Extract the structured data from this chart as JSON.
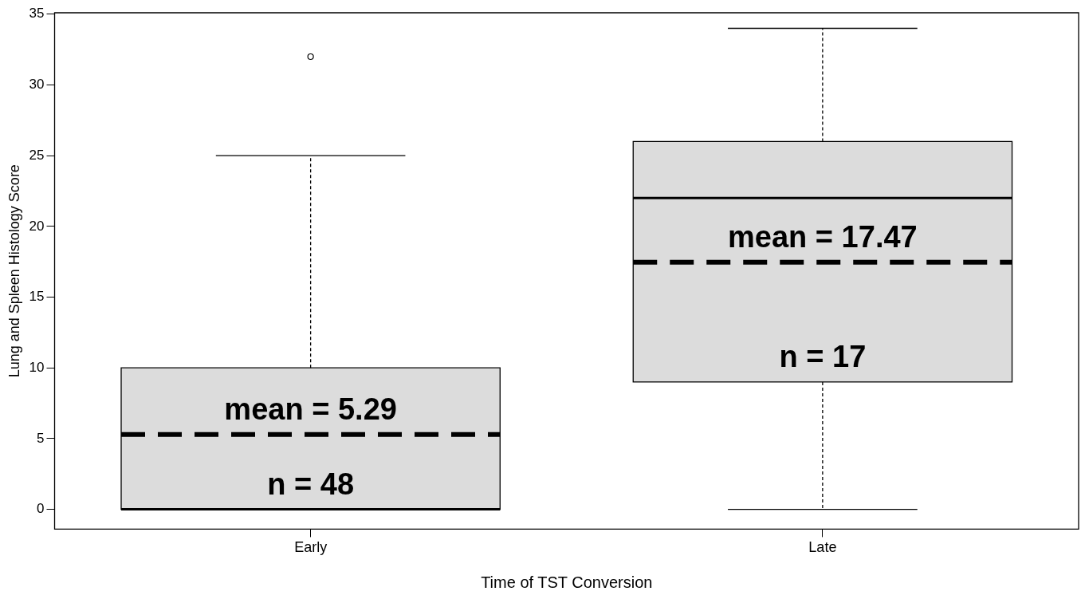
{
  "chart_data": {
    "type": "box",
    "xlabel": "Time of TST Conversion",
    "ylabel": "Lung and Spleen Histology Score",
    "categories": [
      "Early",
      "Late"
    ],
    "boxes": [
      {
        "low": 0,
        "q1": 0,
        "median": 0,
        "q3": 10,
        "high": 25,
        "mean": 5.29,
        "outliers": [
          32
        ]
      },
      {
        "low": 0,
        "q1": 9,
        "median": 22,
        "q3": 26,
        "high": 34,
        "mean": 17.47
      }
    ],
    "color": "#dcdcdc",
    "ylim": [
      -1.4,
      35.1
    ],
    "yticks": [
      0,
      5,
      10,
      15,
      20,
      25,
      30,
      35
    ],
    "grid": false,
    "legend": false,
    "annotations": [
      {
        "text": "mean = 5.29",
        "x": "Early",
        "y": 5.29
      },
      {
        "text": "n = 48",
        "x": "Early",
        "y": 0
      },
      {
        "text": "mean = 17.47",
        "x": "Late",
        "y": 17.47
      },
      {
        "text": "n = 17",
        "x": "Late",
        "y": 9
      }
    ]
  }
}
